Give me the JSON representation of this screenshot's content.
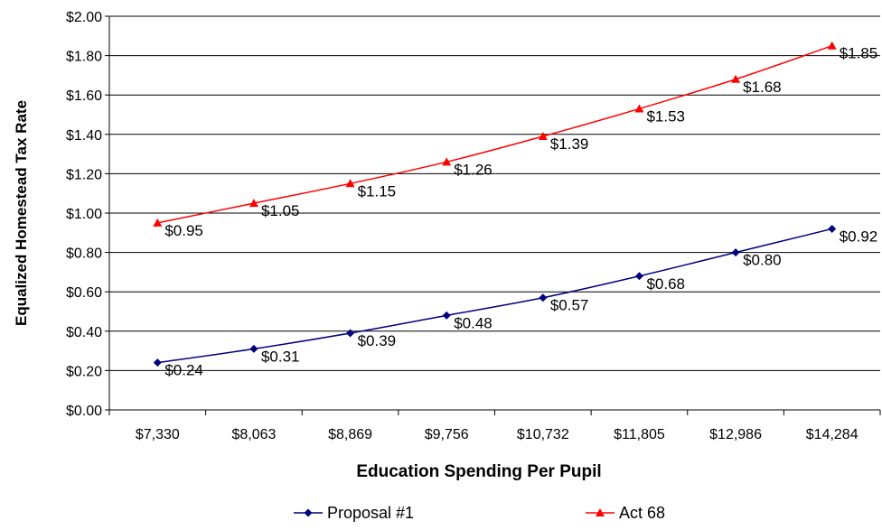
{
  "chart_data": {
    "type": "line",
    "title": "",
    "xlabel": "Education Spending Per Pupil",
    "ylabel": "Equalized Homestead Tax Rate",
    "categories": [
      "$7,330",
      "$8,063",
      "$8,869",
      "$9,756",
      "$10,732",
      "$11,805",
      "$12,986",
      "$14,284"
    ],
    "ylim": [
      0,
      2
    ],
    "ytick_step": 0.2,
    "ytick_labels": [
      "$0.00",
      "$0.20",
      "$0.40",
      "$0.60",
      "$0.80",
      "$1.00",
      "$1.20",
      "$1.40",
      "$1.60",
      "$1.80",
      "$2.00"
    ],
    "grid": true,
    "legend_position": "bottom",
    "series": [
      {
        "name": "Proposal #1",
        "color": "#000080",
        "marker": "diamond",
        "values": [
          0.24,
          0.31,
          0.39,
          0.48,
          0.57,
          0.68,
          0.8,
          0.92
        ],
        "data_labels": [
          "$0.24",
          "$0.31",
          "$0.39",
          "$0.48",
          "$0.57",
          "$0.68",
          "$0.80",
          "$0.92"
        ]
      },
      {
        "name": "Act 68",
        "color": "#ff0000",
        "marker": "triangle",
        "values": [
          0.95,
          1.05,
          1.15,
          1.26,
          1.39,
          1.53,
          1.68,
          1.85
        ],
        "data_labels": [
          "$0.95",
          "$1.05",
          "$1.15",
          "$1.26",
          "$1.39",
          "$1.53",
          "$1.68",
          "$1.85"
        ]
      }
    ]
  }
}
